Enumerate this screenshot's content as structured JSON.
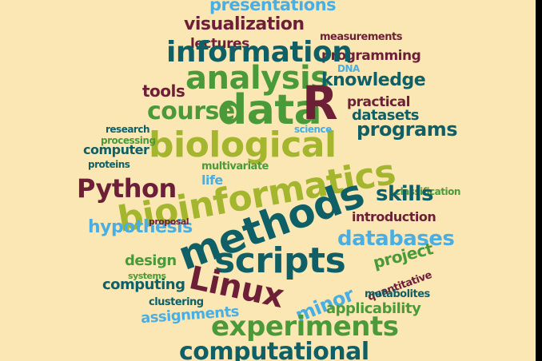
{
  "words": {
    "presentations": "presentations",
    "visualization": "visualization",
    "lectures": "lectures",
    "measurements": "measurements",
    "programming": "programming",
    "information": "information",
    "dna": "DNA",
    "analysis": "analysis",
    "knowledge": "knowledge",
    "tools": "tools",
    "practical": "practical",
    "course": "course",
    "data": "data",
    "r": "R",
    "datasets": "datasets",
    "programs": "programs",
    "biological": "biological",
    "research": "research",
    "processing": "processing",
    "computer": "computer",
    "science": "science",
    "proteins": "proteins",
    "python": "Python",
    "multivariate": "multivariate",
    "life": "life",
    "bioinformatics": "bioinformatics",
    "classification": "classification",
    "skills": "skills",
    "introduction": "introduction",
    "methods": "methods",
    "hypothesis": "hypothesis",
    "proposal": "proposal",
    "databases": "databases",
    "design": "design",
    "scripts": "scripts",
    "project": "project",
    "linux": "Linux",
    "computing": "computing",
    "systems": "systems",
    "minor": "minor",
    "quantitative": "quantitative",
    "metabolites": "metabolites",
    "clustering": "clustering",
    "applicability": "applicability",
    "assignments": "assignments",
    "experiments": "experiments",
    "computational": "computational"
  },
  "colors": {
    "background": "#fbe7b3",
    "teal": "#0f5f66",
    "maroon": "#6e1f38",
    "olive": "#a4b52e",
    "light_blue": "#4aaee3",
    "green": "#4a9a3a"
  }
}
